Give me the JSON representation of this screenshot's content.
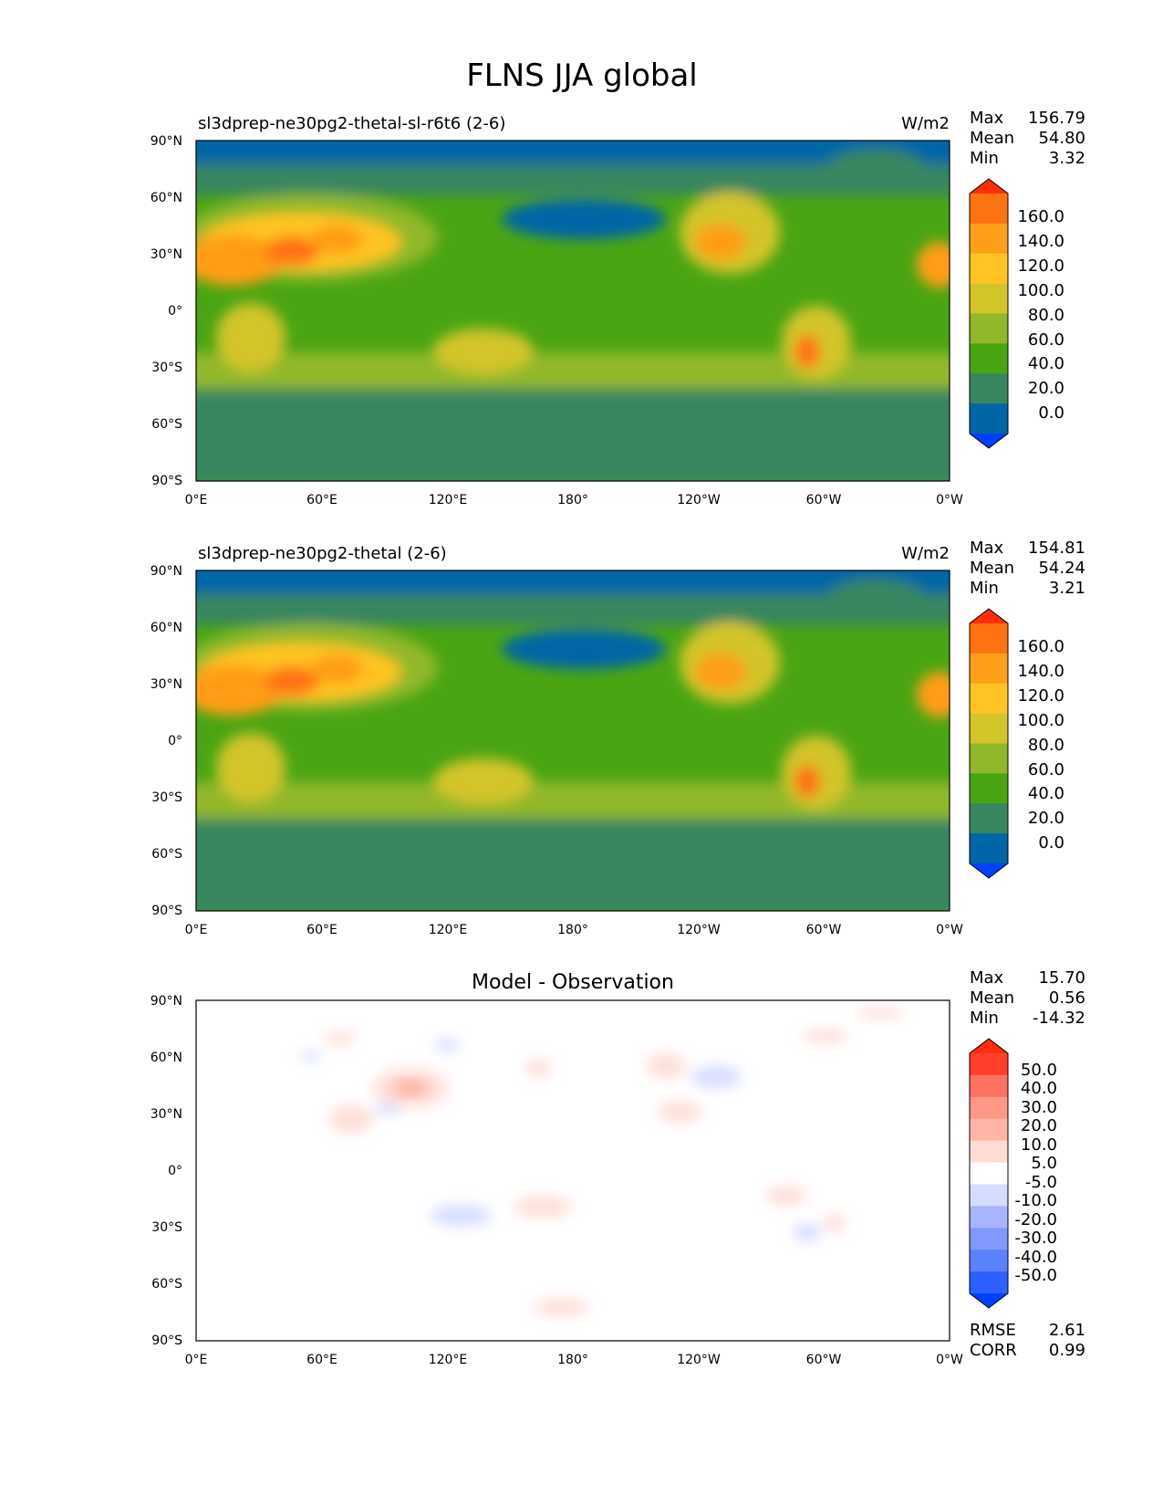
{
  "figure": {
    "title": "FLNS JJA global"
  },
  "lat_ticks": [
    "90°N",
    "60°N",
    "30°N",
    "0°",
    "30°S",
    "60°S",
    "90°S"
  ],
  "lon_ticks": [
    "0°E",
    "60°E",
    "120°E",
    "180°",
    "120°W",
    "60°W",
    "0°W"
  ],
  "colors": {
    "base_levels": [
      "#0040ff",
      "#0066a6",
      "#388660",
      "#4aa513",
      "#91b82b",
      "#d3c42a",
      "#ffc423",
      "#ff9e18",
      "#ff7212",
      "#ff2e0c"
    ],
    "diff_levels": [
      "#0040ff",
      "#2c61ff",
      "#5a82ff",
      "#8198ff",
      "#a8b4ff",
      "#d5dcff",
      "#ffffff",
      "#ffdcd6",
      "#ffb4a6",
      "#ff9886",
      "#ff7262",
      "#ff3f2c",
      "#ff2e0c"
    ]
  },
  "chart_data": [
    {
      "type": "heatmap",
      "title": "sl3dprep-ne30pg2-thetal-sl-r6t6 (2-6)",
      "units": "W/m2",
      "stats": {
        "max_label": "Max",
        "max": "156.79",
        "mean_label": "Mean",
        "mean": "54.80",
        "min_label": "Min",
        "min": "3.32"
      },
      "colorbar_ticks": [
        "160.0",
        "140.0",
        "120.0",
        "100.0",
        "80.0",
        "60.0",
        "40.0",
        "20.0",
        "0.0"
      ],
      "levels": [
        0,
        20,
        40,
        60,
        80,
        100,
        120,
        140,
        160
      ]
    },
    {
      "type": "heatmap",
      "title": "sl3dprep-ne30pg2-thetal (2-6)",
      "units": "W/m2",
      "stats": {
        "max_label": "Max",
        "max": "154.81",
        "mean_label": "Mean",
        "mean": "54.24",
        "min_label": "Min",
        "min": "3.21"
      },
      "colorbar_ticks": [
        "160.0",
        "140.0",
        "120.0",
        "100.0",
        "80.0",
        "60.0",
        "40.0",
        "20.0",
        "0.0"
      ],
      "levels": [
        0,
        20,
        40,
        60,
        80,
        100,
        120,
        140,
        160
      ]
    },
    {
      "type": "heatmap",
      "title": "Model - Observation",
      "units": "",
      "stats": {
        "max_label": "Max",
        "max": "15.70",
        "mean_label": "Mean",
        "mean": "0.56",
        "min_label": "Min",
        "min": "-14.32"
      },
      "colorbar_ticks": [
        "50.0",
        "40.0",
        "30.0",
        "20.0",
        "10.0",
        "5.0",
        "-5.0",
        "-10.0",
        "-20.0",
        "-30.0",
        "-40.0",
        "-50.0"
      ],
      "levels": [
        -50,
        -40,
        -30,
        -20,
        -10,
        -5,
        5,
        10,
        20,
        30,
        40,
        50
      ],
      "metrics": {
        "rmse_label": "RMSE",
        "rmse": "2.61",
        "corr_label": "CORR",
        "corr": "0.99"
      }
    }
  ]
}
